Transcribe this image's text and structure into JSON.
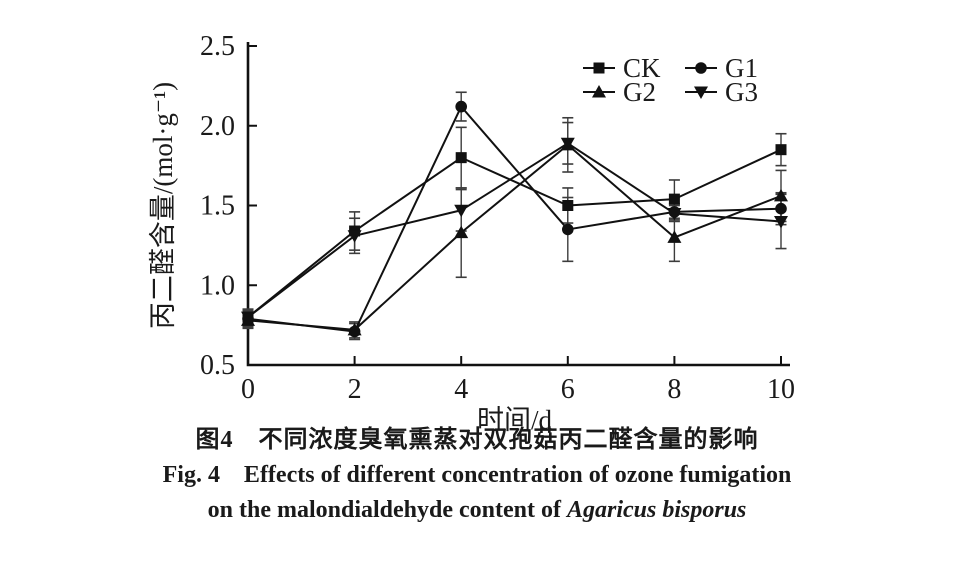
{
  "chart_data": {
    "type": "line",
    "x": [
      0,
      2,
      4,
      6,
      8,
      10
    ],
    "xticks": [
      "0",
      "2",
      "4",
      "6",
      "8",
      "10"
    ],
    "yticks": [
      "0.5",
      "1.0",
      "1.5",
      "2.0",
      "2.5"
    ],
    "xlim": [
      0,
      10
    ],
    "ylim": [
      0.5,
      2.5
    ],
    "xlabel": "时间/d",
    "ylabel": "丙二醛含量/(mol·g⁻¹)",
    "grid": false,
    "legend_position": "top-right-inside",
    "color": "#111111",
    "series": [
      {
        "name": "CK",
        "marker": "square",
        "values": [
          0.8,
          1.34,
          1.8,
          1.5,
          1.54,
          1.85
        ],
        "errors": [
          0.05,
          0.12,
          0.19,
          0.11,
          0.12,
          0.1
        ]
      },
      {
        "name": "G1",
        "marker": "circle",
        "values": [
          0.79,
          0.71,
          2.12,
          1.35,
          1.46,
          1.48
        ],
        "errors": [
          0.05,
          0.05,
          0.09,
          0.2,
          0.05,
          0.1
        ]
      },
      {
        "name": "G2",
        "marker": "triangle-up",
        "values": [
          0.78,
          0.72,
          1.33,
          1.88,
          1.3,
          1.56
        ],
        "errors": [
          0.05,
          0.05,
          0.28,
          0.17,
          0.15,
          0.16
        ]
      },
      {
        "name": "G3",
        "marker": "triangle-down",
        "values": [
          0.8,
          1.31,
          1.47,
          1.89,
          1.45,
          1.4
        ],
        "errors": [
          0.05,
          0.11,
          0.13,
          0.13,
          0.05,
          0.17
        ]
      }
    ]
  },
  "caption": {
    "zh": "图4　不同浓度臭氧熏蒸对双孢菇丙二醛含量的影响",
    "en_line1": "Fig. 4　Effects of different concentration of ozone fumigation",
    "en_line2_text": "on the malondialdehyde content of ",
    "en_line2_species": "Agaricus bisporus"
  }
}
